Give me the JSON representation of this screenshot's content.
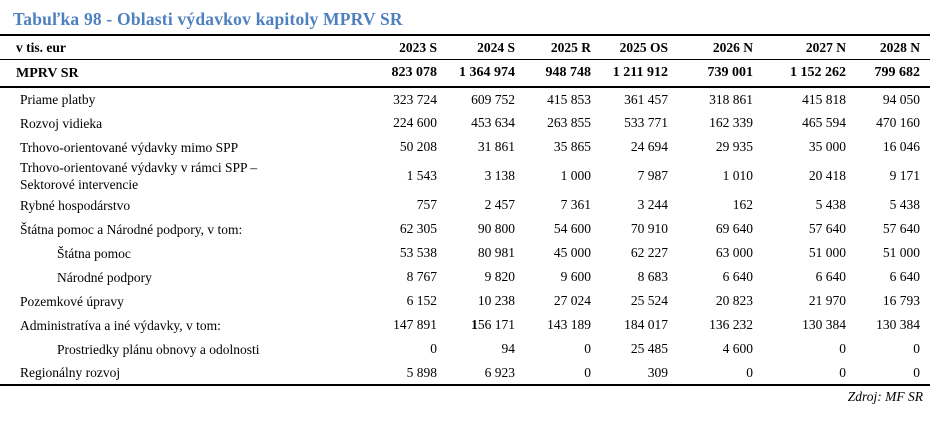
{
  "title": "Tabuľka 98 - Oblasti výdavkov kapitoly MPRV SR",
  "source": "Zdroj: MF SR",
  "colors": {
    "title_blue": "#4e80bf",
    "text": "#000000",
    "rule": "#000000",
    "background": "#ffffff"
  },
  "table": {
    "unit_label": "v tis. eur",
    "columns": [
      "2023 S",
      "2024 S",
      "2025 R",
      "2025 OS",
      "2026 N",
      "2027 N",
      "2028 N"
    ],
    "total_row": {
      "label": "MPRV SR",
      "values": [
        "823 078",
        "1 364 974",
        "948 748",
        "1 211 912",
        "739 001",
        "1 152 262",
        "799 682"
      ]
    },
    "rows": [
      {
        "label": "Priame platby",
        "indent": 0,
        "values": [
          "323 724",
          "609 752",
          "415 853",
          "361 457",
          "318 861",
          "415 818",
          "94 050"
        ]
      },
      {
        "label": "Rozvoj vidieka",
        "indent": 0,
        "values": [
          "224 600",
          "453 634",
          "263 855",
          "533 771",
          "162 339",
          "465 594",
          "470 160"
        ]
      },
      {
        "label": "Trhovo-orientované výdavky mimo SPP",
        "indent": 0,
        "values": [
          "50 208",
          "31 861",
          "35 865",
          "24 694",
          "29 935",
          "35 000",
          "16 046"
        ]
      },
      {
        "label": "Trhovo-orientované výdavky v rámci SPP –\nSektorové intervencie",
        "indent": 0,
        "values": [
          "1 543",
          "3 138",
          "1 000",
          "7 987",
          "1 010",
          "20 418",
          "9 171"
        ]
      },
      {
        "label": "Rybné hospodárstvo",
        "indent": 0,
        "values": [
          "757",
          "2 457",
          "7 361",
          "3 244",
          "162",
          "5 438",
          "5 438"
        ]
      },
      {
        "label": "Štátna pomoc a Národné podpory, v tom:",
        "indent": 0,
        "values": [
          "62 305",
          "90 800",
          "54 600",
          "70 910",
          "69 640",
          "57 640",
          "57 640"
        ]
      },
      {
        "label": "Štátna pomoc",
        "indent": 1,
        "values": [
          "53 538",
          "80 981",
          "45 000",
          "62 227",
          "63 000",
          "51 000",
          "51 000"
        ]
      },
      {
        "label": "Národné podpory",
        "indent": 1,
        "values": [
          "8 767",
          "9 820",
          "9 600",
          "8 683",
          "6 640",
          "6 640",
          "6 640"
        ]
      },
      {
        "label": "Pozemkové úpravy",
        "indent": 0,
        "values": [
          "6 152",
          "10 238",
          "27 024",
          "25 524",
          "20 823",
          "21 970",
          "16 793"
        ]
      },
      {
        "label": "Administratíva a iné výdavky, v tom:",
        "indent": 0,
        "bold_first_digit_col": 1,
        "values": [
          "147 891",
          "156 171",
          "143 189",
          "184 017",
          "136 232",
          "130 384",
          "130 384"
        ]
      },
      {
        "label": "Prostriedky plánu obnovy a odolnosti",
        "indent": 1,
        "values": [
          "0",
          "94",
          "0",
          "25 485",
          "4 600",
          "0",
          "0"
        ]
      },
      {
        "label": "Regionálny rozvoj",
        "indent": 0,
        "values": [
          "5 898",
          "6 923",
          "0",
          "309",
          "0",
          "0",
          "0"
        ]
      }
    ]
  }
}
